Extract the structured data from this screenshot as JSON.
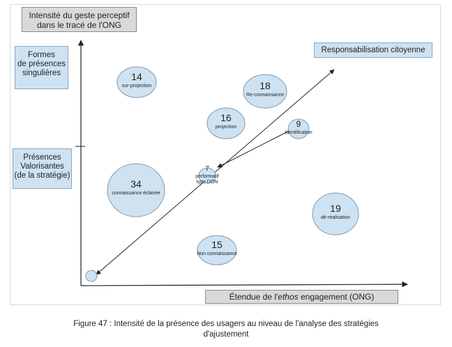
{
  "y_axis_title": [
    "Intensité du geste  perceptif",
    "dans le tracé de l'ONG"
  ],
  "x_axis_title": {
    "before": "Étendue de l'",
    "italic": "ethos",
    "after": " engagement (ONG)"
  },
  "diagonal_label": "Responsabilisation citoyenne",
  "y_zones": [
    [
      "Formes",
      "de présences",
      "singulières"
    ],
    [
      "Présences",
      "Valorisantes",
      "(de la stratégie)"
    ]
  ],
  "bubbles": [
    {
      "number": "14",
      "label": [
        "sur-projection"
      ]
    },
    {
      "number": "18",
      "label": [
        "Re-connaissance"
      ]
    },
    {
      "number": "16",
      "label": [
        "projection"
      ]
    },
    {
      "number": "9",
      "label": [
        "Identification"
      ]
    },
    {
      "number": "7",
      "label": [
        "performatif",
        "type DON"
      ]
    },
    {
      "number": "34",
      "label": [
        "connaissance éclairée"
      ]
    },
    {
      "number": "19",
      "label": [
        "dé-réalisation"
      ]
    },
    {
      "number": "15",
      "label": [
        "Non connaissance"
      ]
    },
    {
      "number": "",
      "label": []
    }
  ],
  "caption": [
    "Figure 47 : Intensité de la présence des usagers au niveau de l'analyse des stratégies",
    "d'ajustement"
  ],
  "colors": {
    "bubble_fill": "#cfe2f1",
    "bubble_stroke": "#7f9ab3",
    "box_gray": "#d9d9d9",
    "box_blue": "#cfe2f1"
  }
}
